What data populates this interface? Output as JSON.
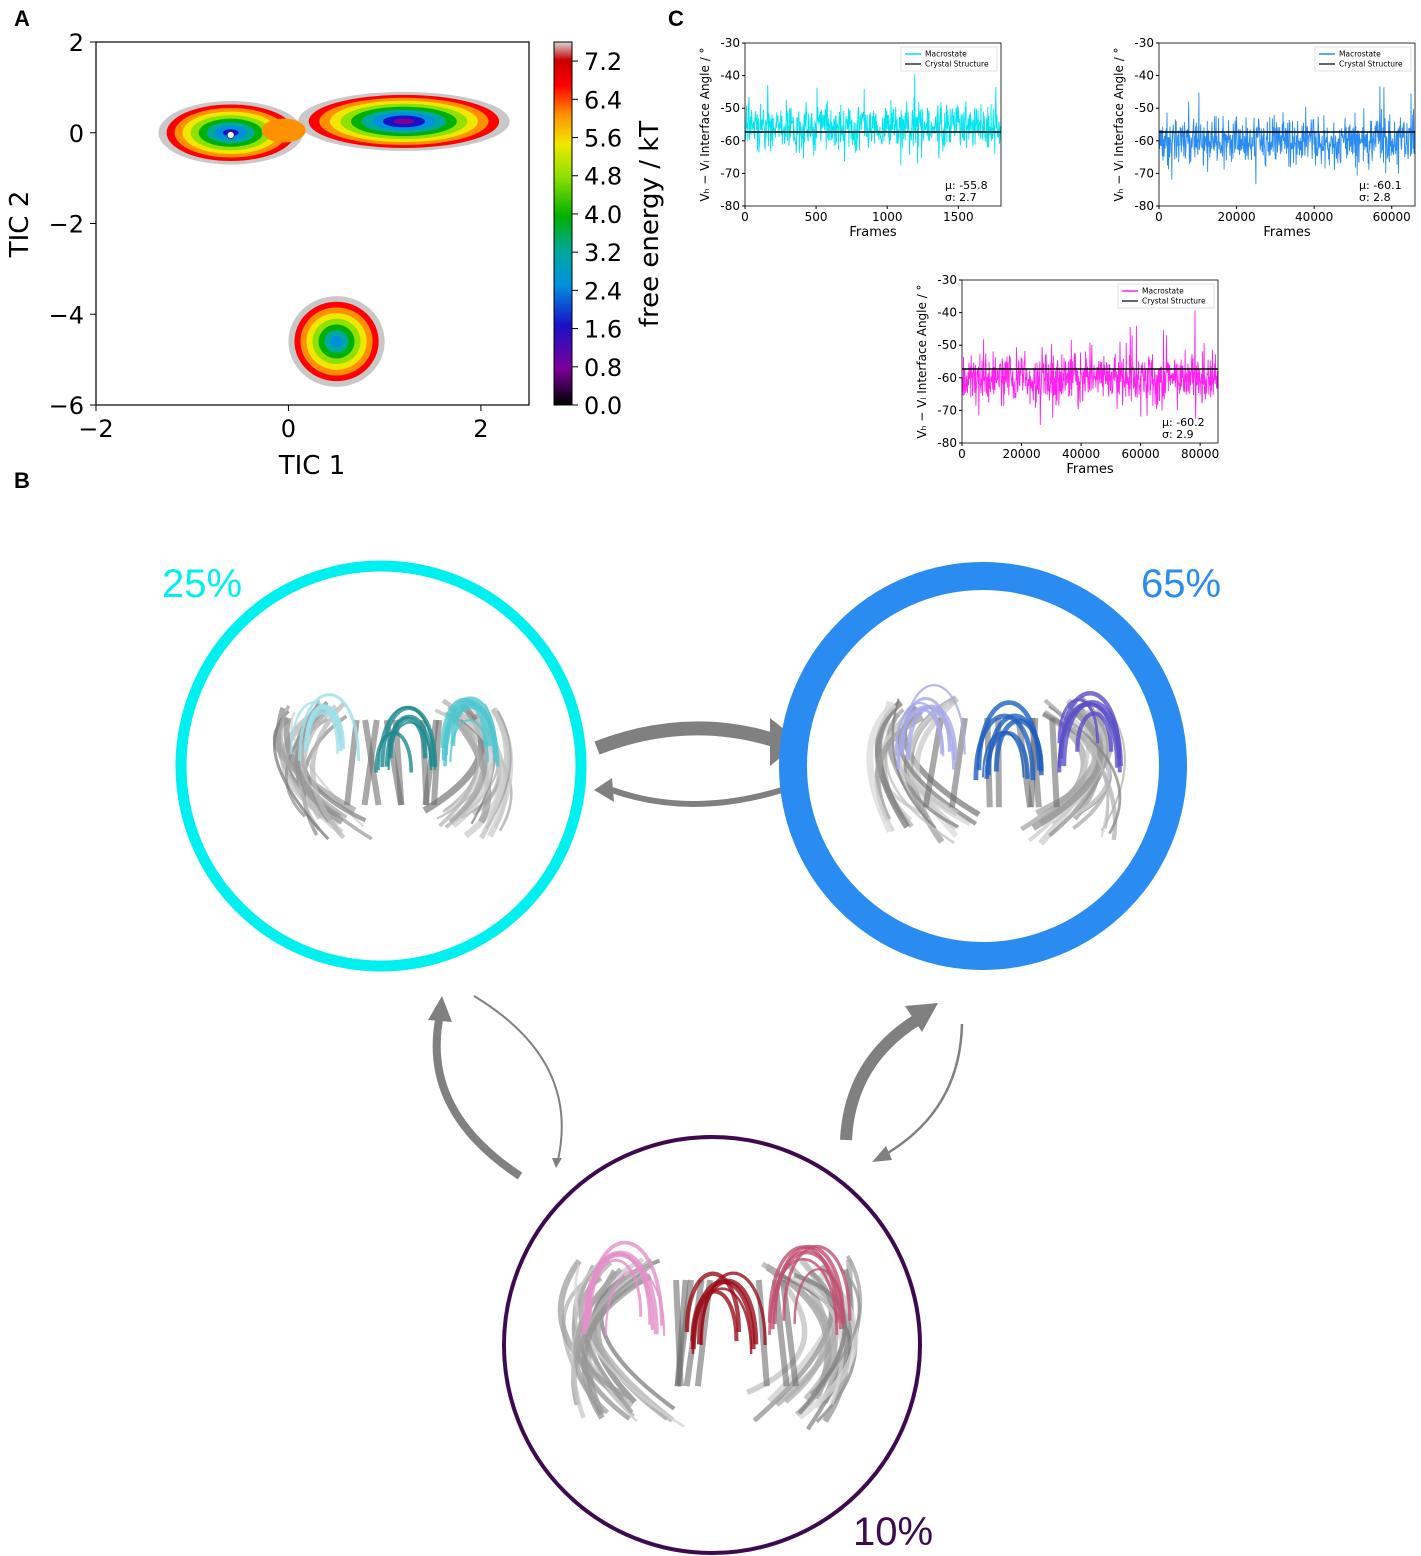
{
  "panels": {
    "a": "A",
    "b": "B",
    "c": "C"
  },
  "chart_data": [
    {
      "panel": "A",
      "type": "heatmap",
      "xlabel": "TIC 1",
      "ylabel": "TIC 2",
      "xlim": [
        -2,
        2.5
      ],
      "ylim": [
        -6,
        2
      ],
      "xticks": [
        "−2",
        "0",
        "2"
      ],
      "xtick_values": [
        -2,
        0,
        2
      ],
      "yticks": [
        "2",
        "0",
        "−2",
        "−4",
        "−6"
      ],
      "ytick_values": [
        2,
        0,
        -2,
        -4,
        -6
      ],
      "colorbar": {
        "label": "free energy / kT",
        "ticks": [
          "7.2",
          "6.4",
          "5.6",
          "4.8",
          "4.0",
          "3.2",
          "2.4",
          "1.6",
          "0.8",
          "0.0"
        ],
        "tick_values": [
          7.2,
          6.4,
          5.6,
          4.8,
          4.0,
          3.2,
          2.4,
          1.6,
          0.8,
          0.0
        ],
        "range": [
          0,
          7.6
        ]
      },
      "basins": [
        {
          "center": [
            -0.6,
            0.0
          ],
          "rx": 0.75,
          "ry": 0.7,
          "min_energy": 1.4
        },
        {
          "center": [
            1.2,
            0.25
          ],
          "rx": 1.1,
          "ry": 0.65,
          "min_energy": 0.0
        },
        {
          "center": [
            0.5,
            -4.6
          ],
          "rx": 0.5,
          "ry": 1.0,
          "min_energy": 1.8
        }
      ],
      "marker": {
        "x": -0.6,
        "y": -0.05
      }
    },
    {
      "panel": "C",
      "type": "line",
      "xlabel": "Frames",
      "ylabel": "Vₕ − Vₗ Interface Angle / °",
      "xlim": [
        0,
        1800
      ],
      "ylim": [
        -80,
        -30
      ],
      "xticks": [
        "0",
        "500",
        "1000",
        "1500"
      ],
      "xtick_values": [
        0,
        500,
        1000,
        1500
      ],
      "yticks": [
        "-30",
        "-40",
        "-50",
        "-60",
        "-70",
        "-80"
      ],
      "ytick_values": [
        -30,
        -40,
        -50,
        -60,
        -70,
        -80
      ],
      "series": [
        {
          "name": "Macrostate",
          "color": "#00e5ee",
          "mean": -55.8,
          "sd": 2.7,
          "n": 1800
        },
        {
          "name": "Crystal Structure",
          "color": "#000000",
          "constant": -57.3
        }
      ],
      "stats": [
        "μ: -55.8",
        "σ: 2.7"
      ]
    },
    {
      "panel": "C",
      "type": "line",
      "xlabel": "Frames",
      "ylabel": "Vₕ − Vₗ Interface Angle / °",
      "xlim": [
        0,
        66000
      ],
      "ylim": [
        -80,
        -30
      ],
      "xticks": [
        "0",
        "20000",
        "40000",
        "60000"
      ],
      "xtick_values": [
        0,
        20000,
        40000,
        60000
      ],
      "yticks": [
        "-30",
        "-40",
        "-50",
        "-60",
        "-70",
        "-80"
      ],
      "ytick_values": [
        -30,
        -40,
        -50,
        -60,
        -70,
        -80
      ],
      "series": [
        {
          "name": "Macrostate",
          "color": "#2a8cf0",
          "mean": -60.1,
          "sd": 2.8,
          "n": 66000
        },
        {
          "name": "Crystal Structure",
          "color": "#000000",
          "constant": -57.3
        }
      ],
      "stats": [
        "μ: -60.1",
        "σ: 2.8"
      ]
    },
    {
      "panel": "C",
      "type": "line",
      "xlabel": "Frames",
      "ylabel": "Vₕ − Vₗ Interface Angle / °",
      "xlim": [
        0,
        86000
      ],
      "ylim": [
        -80,
        -30
      ],
      "xticks": [
        "0",
        "20000",
        "40000",
        "60000",
        "80000"
      ],
      "xtick_values": [
        0,
        20000,
        40000,
        60000,
        80000
      ],
      "yticks": [
        "-30",
        "-40",
        "-50",
        "-60",
        "-70",
        "-80"
      ],
      "ytick_values": [
        -30,
        -40,
        -50,
        -60,
        -70,
        -80
      ],
      "series": [
        {
          "name": "Macrostate",
          "color": "#ff22ee",
          "mean": -60.2,
          "sd": 2.9,
          "n": 86000
        },
        {
          "name": "Crystal Structure",
          "color": "#000000",
          "constant": -57.3
        }
      ],
      "stats": [
        "μ: -60.2",
        "σ: 2.9"
      ]
    }
  ],
  "network": {
    "states": [
      {
        "id": "cyan",
        "label": "25%",
        "color": "#00f0f0",
        "population": 25
      },
      {
        "id": "blue",
        "label": "65%",
        "color": "#2a8cf0",
        "population": 65
      },
      {
        "id": "purple",
        "label": "10%",
        "color": "#3d0a4f",
        "population": 10
      }
    ],
    "arrow_color": "#808080"
  }
}
